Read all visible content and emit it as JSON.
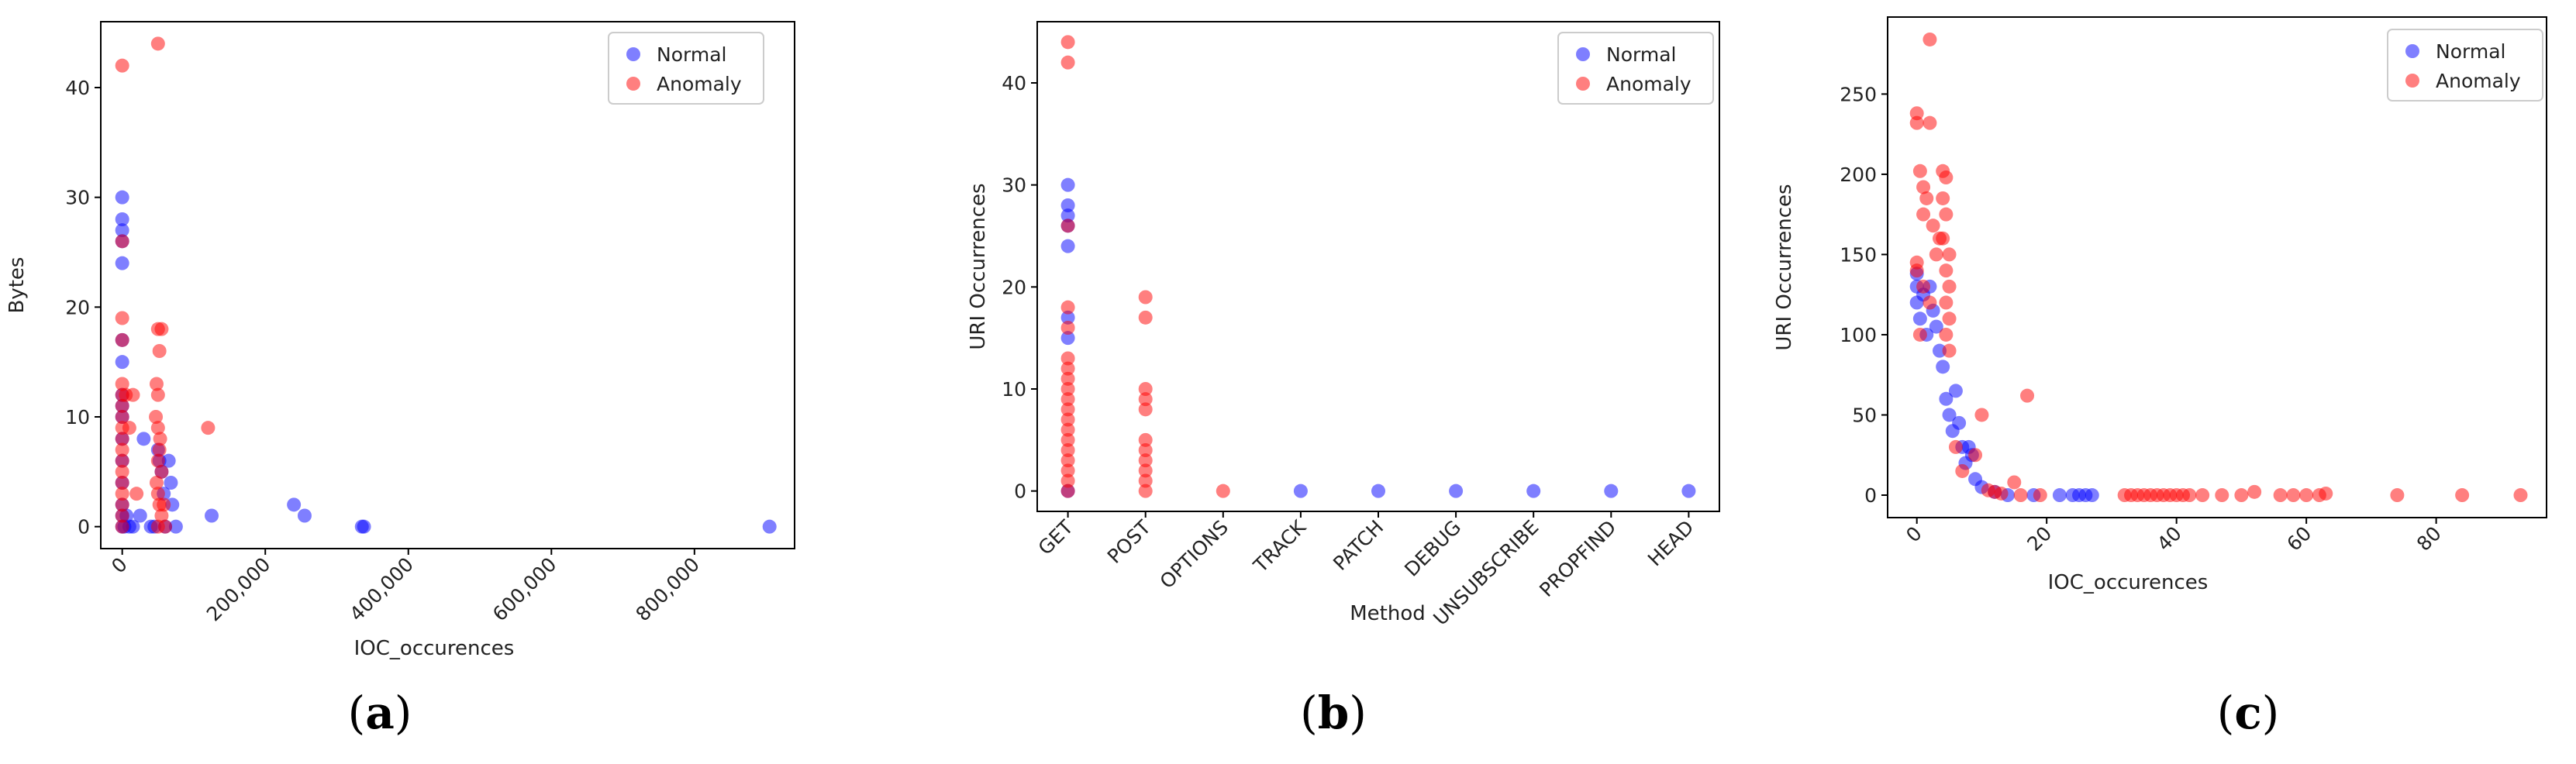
{
  "chart_data": [
    {
      "id": "a",
      "type": "scatter",
      "caption_letter": "a",
      "xlabel": "IOC_occurences",
      "ylabel": "Bytes",
      "xlim": [
        -30000,
        940000
      ],
      "ylim": [
        -2,
        46
      ],
      "xticks": [
        0,
        200000,
        400000,
        600000,
        800000
      ],
      "xtick_labels": [
        "0",
        "200,000",
        "400,000",
        "600,000",
        "800,000"
      ],
      "xtick_rotation": 45,
      "yticks": [
        0,
        10,
        20,
        30,
        40
      ],
      "ytick_labels": [
        "0",
        "10",
        "20",
        "30",
        "40"
      ],
      "legend": {
        "position": "top-right",
        "entries": [
          "Normal",
          "Anomaly"
        ]
      },
      "grid": false,
      "series": [
        {
          "name": "Normal",
          "color": "#0000ff",
          "points": [
            [
              0,
              30
            ],
            [
              0,
              28
            ],
            [
              0,
              27
            ],
            [
              0,
              26
            ],
            [
              0,
              24
            ],
            [
              0,
              17
            ],
            [
              0,
              15
            ],
            [
              0,
              12
            ],
            [
              0,
              11
            ],
            [
              0,
              10
            ],
            [
              0,
              8
            ],
            [
              0,
              6
            ],
            [
              0,
              4
            ],
            [
              0,
              2
            ],
            [
              0,
              1
            ],
            [
              0,
              0
            ],
            [
              3000,
              0
            ],
            [
              6000,
              1
            ],
            [
              10000,
              0
            ],
            [
              15000,
              0
            ],
            [
              25000,
              1
            ],
            [
              30000,
              8
            ],
            [
              40000,
              0
            ],
            [
              45000,
              0
            ],
            [
              50000,
              7
            ],
            [
              52000,
              6
            ],
            [
              55000,
              5
            ],
            [
              58000,
              3
            ],
            [
              60000,
              0
            ],
            [
              65000,
              6
            ],
            [
              68000,
              4
            ],
            [
              70000,
              2
            ],
            [
              75000,
              0
            ],
            [
              125000,
              1
            ],
            [
              240000,
              2
            ],
            [
              255000,
              1
            ],
            [
              335000,
              0
            ],
            [
              338000,
              0
            ],
            [
              905000,
              0
            ]
          ]
        },
        {
          "name": "Anomaly",
          "color": "#ff0000",
          "points": [
            [
              0,
              42
            ],
            [
              0,
              26
            ],
            [
              0,
              19
            ],
            [
              0,
              17
            ],
            [
              0,
              13
            ],
            [
              0,
              12
            ],
            [
              0,
              11
            ],
            [
              0,
              10
            ],
            [
              0,
              9
            ],
            [
              0,
              8
            ],
            [
              0,
              7
            ],
            [
              0,
              6
            ],
            [
              0,
              5
            ],
            [
              0,
              4
            ],
            [
              0,
              3
            ],
            [
              0,
              2
            ],
            [
              0,
              1
            ],
            [
              0,
              0
            ],
            [
              5000,
              12
            ],
            [
              10000,
              9
            ],
            [
              15000,
              12
            ],
            [
              20000,
              3
            ],
            [
              50000,
              44
            ],
            [
              50000,
              18
            ],
            [
              52000,
              16
            ],
            [
              55000,
              18
            ],
            [
              48000,
              13
            ],
            [
              50000,
              12
            ],
            [
              47000,
              10
            ],
            [
              50000,
              9
            ],
            [
              53000,
              8
            ],
            [
              52000,
              7
            ],
            [
              50000,
              6
            ],
            [
              55000,
              5
            ],
            [
              48000,
              4
            ],
            [
              50000,
              3
            ],
            [
              52000,
              2
            ],
            [
              55000,
              1
            ],
            [
              50000,
              0
            ],
            [
              58000,
              2
            ],
            [
              60000,
              0
            ],
            [
              120000,
              9
            ]
          ]
        }
      ]
    },
    {
      "id": "b",
      "type": "scatter",
      "caption_letter": "b",
      "xlabel": "Method",
      "ylabel": "URI Occurrences",
      "categories": [
        "GET",
        "POST",
        "OPTIONS",
        "TRACK",
        "PATCH",
        "DEBUG",
        "UNSUBSCRIBE",
        "PROPFIND",
        "HEAD"
      ],
      "xtick_rotation": 45,
      "ylim": [
        -2,
        46
      ],
      "yticks": [
        0,
        10,
        20,
        30,
        40
      ],
      "ytick_labels": [
        "0",
        "10",
        "20",
        "30",
        "40"
      ],
      "legend": {
        "position": "top-right",
        "entries": [
          "Normal",
          "Anomaly"
        ]
      },
      "grid": false,
      "series": [
        {
          "name": "Normal",
          "color": "#0000ff",
          "points": [
            [
              "GET",
              30
            ],
            [
              "GET",
              28
            ],
            [
              "GET",
              27
            ],
            [
              "GET",
              26
            ],
            [
              "GET",
              24
            ],
            [
              "GET",
              17
            ],
            [
              "GET",
              15
            ],
            [
              "GET",
              0
            ],
            [
              "TRACK",
              0
            ],
            [
              "PATCH",
              0
            ],
            [
              "DEBUG",
              0
            ],
            [
              "UNSUBSCRIBE",
              0
            ],
            [
              "PROPFIND",
              0
            ],
            [
              "HEAD",
              0
            ]
          ]
        },
        {
          "name": "Anomaly",
          "color": "#ff0000",
          "points": [
            [
              "GET",
              44
            ],
            [
              "GET",
              42
            ],
            [
              "GET",
              26
            ],
            [
              "GET",
              18
            ],
            [
              "GET",
              16
            ],
            [
              "GET",
              13
            ],
            [
              "GET",
              12
            ],
            [
              "GET",
              11
            ],
            [
              "GET",
              10
            ],
            [
              "GET",
              9
            ],
            [
              "GET",
              8
            ],
            [
              "GET",
              7
            ],
            [
              "GET",
              6
            ],
            [
              "GET",
              5
            ],
            [
              "GET",
              4
            ],
            [
              "GET",
              3
            ],
            [
              "GET",
              2
            ],
            [
              "GET",
              1
            ],
            [
              "GET",
              0
            ],
            [
              "POST",
              19
            ],
            [
              "POST",
              17
            ],
            [
              "POST",
              10
            ],
            [
              "POST",
              9
            ],
            [
              "POST",
              8
            ],
            [
              "POST",
              5
            ],
            [
              "POST",
              4
            ],
            [
              "POST",
              3
            ],
            [
              "POST",
              2
            ],
            [
              "POST",
              1
            ],
            [
              "POST",
              0
            ],
            [
              "OPTIONS",
              0
            ]
          ]
        }
      ]
    },
    {
      "id": "c",
      "type": "scatter",
      "caption_letter": "c",
      "xlabel": "IOC_occurences",
      "ylabel": "URI Occurrences",
      "xlim": [
        -4.5,
        97
      ],
      "ylim": [
        -14,
        298
      ],
      "xticks": [
        0,
        20,
        40,
        60,
        80
      ],
      "xtick_labels": [
        "0",
        "20",
        "40",
        "60",
        "80"
      ],
      "xtick_rotation": 45,
      "yticks": [
        0,
        50,
        100,
        150,
        200,
        250
      ],
      "ytick_labels": [
        "0",
        "50",
        "100",
        "150",
        "200",
        "250"
      ],
      "legend": {
        "position": "top-right",
        "entries": [
          "Normal",
          "Anomaly"
        ]
      },
      "grid": false,
      "series": [
        {
          "name": "Normal",
          "color": "#0000ff",
          "points": [
            [
              0,
              138
            ],
            [
              0,
              130
            ],
            [
              0,
              120
            ],
            [
              0.5,
              110
            ],
            [
              1,
              125
            ],
            [
              1.5,
              100
            ],
            [
              2,
              130
            ],
            [
              2.5,
              115
            ],
            [
              3,
              105
            ],
            [
              3.5,
              90
            ],
            [
              4,
              80
            ],
            [
              4.5,
              60
            ],
            [
              5,
              50
            ],
            [
              5.5,
              40
            ],
            [
              6,
              65
            ],
            [
              6.5,
              45
            ],
            [
              7,
              30
            ],
            [
              7.5,
              20
            ],
            [
              8,
              30
            ],
            [
              8.5,
              25
            ],
            [
              9,
              10
            ],
            [
              10,
              5
            ],
            [
              12,
              2
            ],
            [
              14,
              0
            ],
            [
              18,
              0
            ],
            [
              22,
              0
            ],
            [
              24,
              0
            ],
            [
              25,
              0
            ],
            [
              26,
              0
            ],
            [
              27,
              0
            ]
          ]
        },
        {
          "name": "Anomaly",
          "color": "#ff0000",
          "points": [
            [
              0,
              238
            ],
            [
              0,
              232
            ],
            [
              0.5,
              202
            ],
            [
              1,
              192
            ],
            [
              1,
              175
            ],
            [
              1.5,
              185
            ],
            [
              2,
              284
            ],
            [
              2,
              232
            ],
            [
              2.5,
              168
            ],
            [
              3,
              150
            ],
            [
              3.5,
              160
            ],
            [
              4,
              202
            ],
            [
              4.5,
              198
            ],
            [
              4,
              185
            ],
            [
              4.5,
              175
            ],
            [
              4,
              160
            ],
            [
              5,
              150
            ],
            [
              4.5,
              140
            ],
            [
              5,
              130
            ],
            [
              4.5,
              120
            ],
            [
              5,
              110
            ],
            [
              4.5,
              100
            ],
            [
              5,
              90
            ],
            [
              0,
              145
            ],
            [
              0,
              140
            ],
            [
              1,
              130
            ],
            [
              2,
              120
            ],
            [
              0.5,
              100
            ],
            [
              6,
              30
            ],
            [
              7,
              15
            ],
            [
              9,
              25
            ],
            [
              10,
              50
            ],
            [
              15,
              8
            ],
            [
              17,
              62
            ],
            [
              11,
              3
            ],
            [
              12,
              2
            ],
            [
              13,
              1
            ],
            [
              16,
              0
            ],
            [
              19,
              0
            ],
            [
              32,
              0
            ],
            [
              33,
              0
            ],
            [
              34,
              0
            ],
            [
              35,
              0
            ],
            [
              36,
              0
            ],
            [
              37,
              0
            ],
            [
              38,
              0
            ],
            [
              39,
              0
            ],
            [
              40,
              0
            ],
            [
              41,
              0
            ],
            [
              42,
              0
            ],
            [
              44,
              0
            ],
            [
              47,
              0
            ],
            [
              50,
              0
            ],
            [
              52,
              2
            ],
            [
              56,
              0
            ],
            [
              58,
              0
            ],
            [
              60,
              0
            ],
            [
              62,
              0
            ],
            [
              63,
              1
            ],
            [
              74,
              0
            ],
            [
              84,
              0
            ],
            [
              93,
              0
            ]
          ]
        }
      ]
    }
  ]
}
